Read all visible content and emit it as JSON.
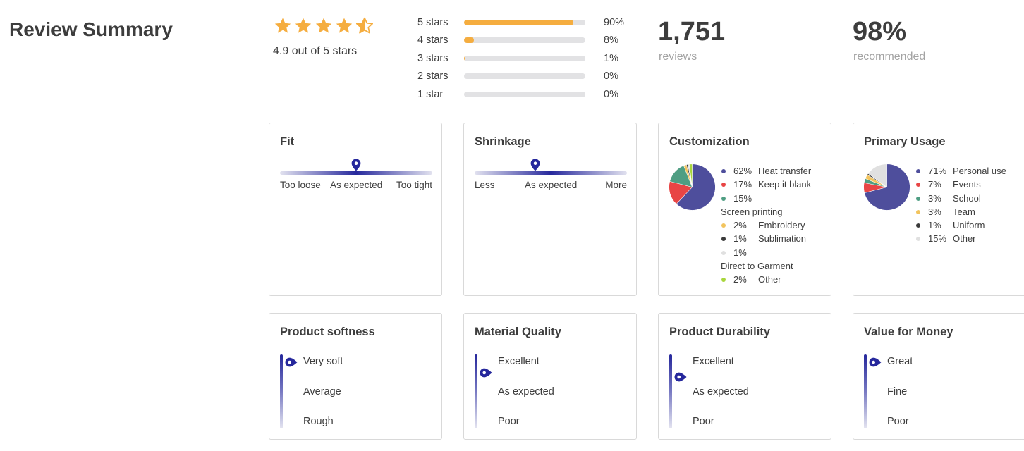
{
  "page": {
    "title": "Review Summary"
  },
  "overall": {
    "rating": 4.9,
    "rating_text": "4.9 out of 5 stars",
    "star_color": "#f5ad3f"
  },
  "distribution": [
    {
      "label": "5 stars",
      "percent": 90,
      "percent_text": "90%"
    },
    {
      "label": "4 stars",
      "percent": 8,
      "percent_text": "8%"
    },
    {
      "label": "3 stars",
      "percent": 1,
      "percent_text": "1%"
    },
    {
      "label": "2 stars",
      "percent": 0,
      "percent_text": "0%"
    },
    {
      "label": "1 star",
      "percent": 0,
      "percent_text": "0%"
    }
  ],
  "stats": {
    "reviews": {
      "value": "1,751",
      "label": "reviews"
    },
    "recommended": {
      "value": "98%",
      "label": "recommended"
    }
  },
  "fit": {
    "title": "Fit",
    "position": 0.5,
    "labels": [
      "Too loose",
      "As expected",
      "Too tight"
    ]
  },
  "shrinkage": {
    "title": "Shrinkage",
    "position": 0.4,
    "labels": [
      "Less",
      "As expected",
      "More"
    ]
  },
  "customization": {
    "title": "Customization",
    "items": [
      {
        "pct": "62%",
        "name": "Heat transfer",
        "value": 62,
        "color": "#4e4e9c"
      },
      {
        "pct": "17%",
        "name": "Keep it blank",
        "value": 17,
        "color": "#e84545"
      },
      {
        "pct": "15%",
        "name": "Screen printing",
        "value": 15,
        "color": "#4f9e83"
      },
      {
        "pct": "2%",
        "name": "Embroidery",
        "value": 2,
        "color": "#f2c45e"
      },
      {
        "pct": "1%",
        "name": "Sublimation",
        "value": 1,
        "color": "#3a3a3a"
      },
      {
        "pct": "1%",
        "name": "Direct to Garment",
        "value": 1,
        "color": "#e0e0e0"
      },
      {
        "pct": "2%",
        "name": "Other",
        "value": 2,
        "color": "#a8d63c"
      }
    ]
  },
  "primary_usage": {
    "title": "Primary Usage",
    "items": [
      {
        "pct": "71%",
        "name": "Personal use",
        "value": 71,
        "color": "#4e4e9c"
      },
      {
        "pct": "7%",
        "name": "Events",
        "value": 7,
        "color": "#e84545"
      },
      {
        "pct": "3%",
        "name": "School",
        "value": 3,
        "color": "#4f9e83"
      },
      {
        "pct": "3%",
        "name": "Team",
        "value": 3,
        "color": "#f2c45e"
      },
      {
        "pct": "1%",
        "name": "Uniform",
        "value": 1,
        "color": "#3a3a3a"
      },
      {
        "pct": "15%",
        "name": "Other",
        "value": 15,
        "color": "#e0e0e0"
      }
    ]
  },
  "softness": {
    "title": "Product softness",
    "position": 0.1,
    "labels": [
      "Very soft",
      "Average",
      "Rough"
    ]
  },
  "material": {
    "title": "Material Quality",
    "position": 0.25,
    "labels": [
      "Excellent",
      "As expected",
      "Poor"
    ]
  },
  "durability": {
    "title": "Product Durability",
    "position": 0.3,
    "labels": [
      "Excellent",
      "As expected",
      "Poor"
    ]
  },
  "value": {
    "title": "Value for Money",
    "position": 0.1,
    "labels": [
      "Great",
      "Fine",
      "Poor"
    ]
  },
  "colors": {
    "scale": "#26289c",
    "bar_fill": "#f5ad3f",
    "bar_track": "#e2e2e4"
  }
}
